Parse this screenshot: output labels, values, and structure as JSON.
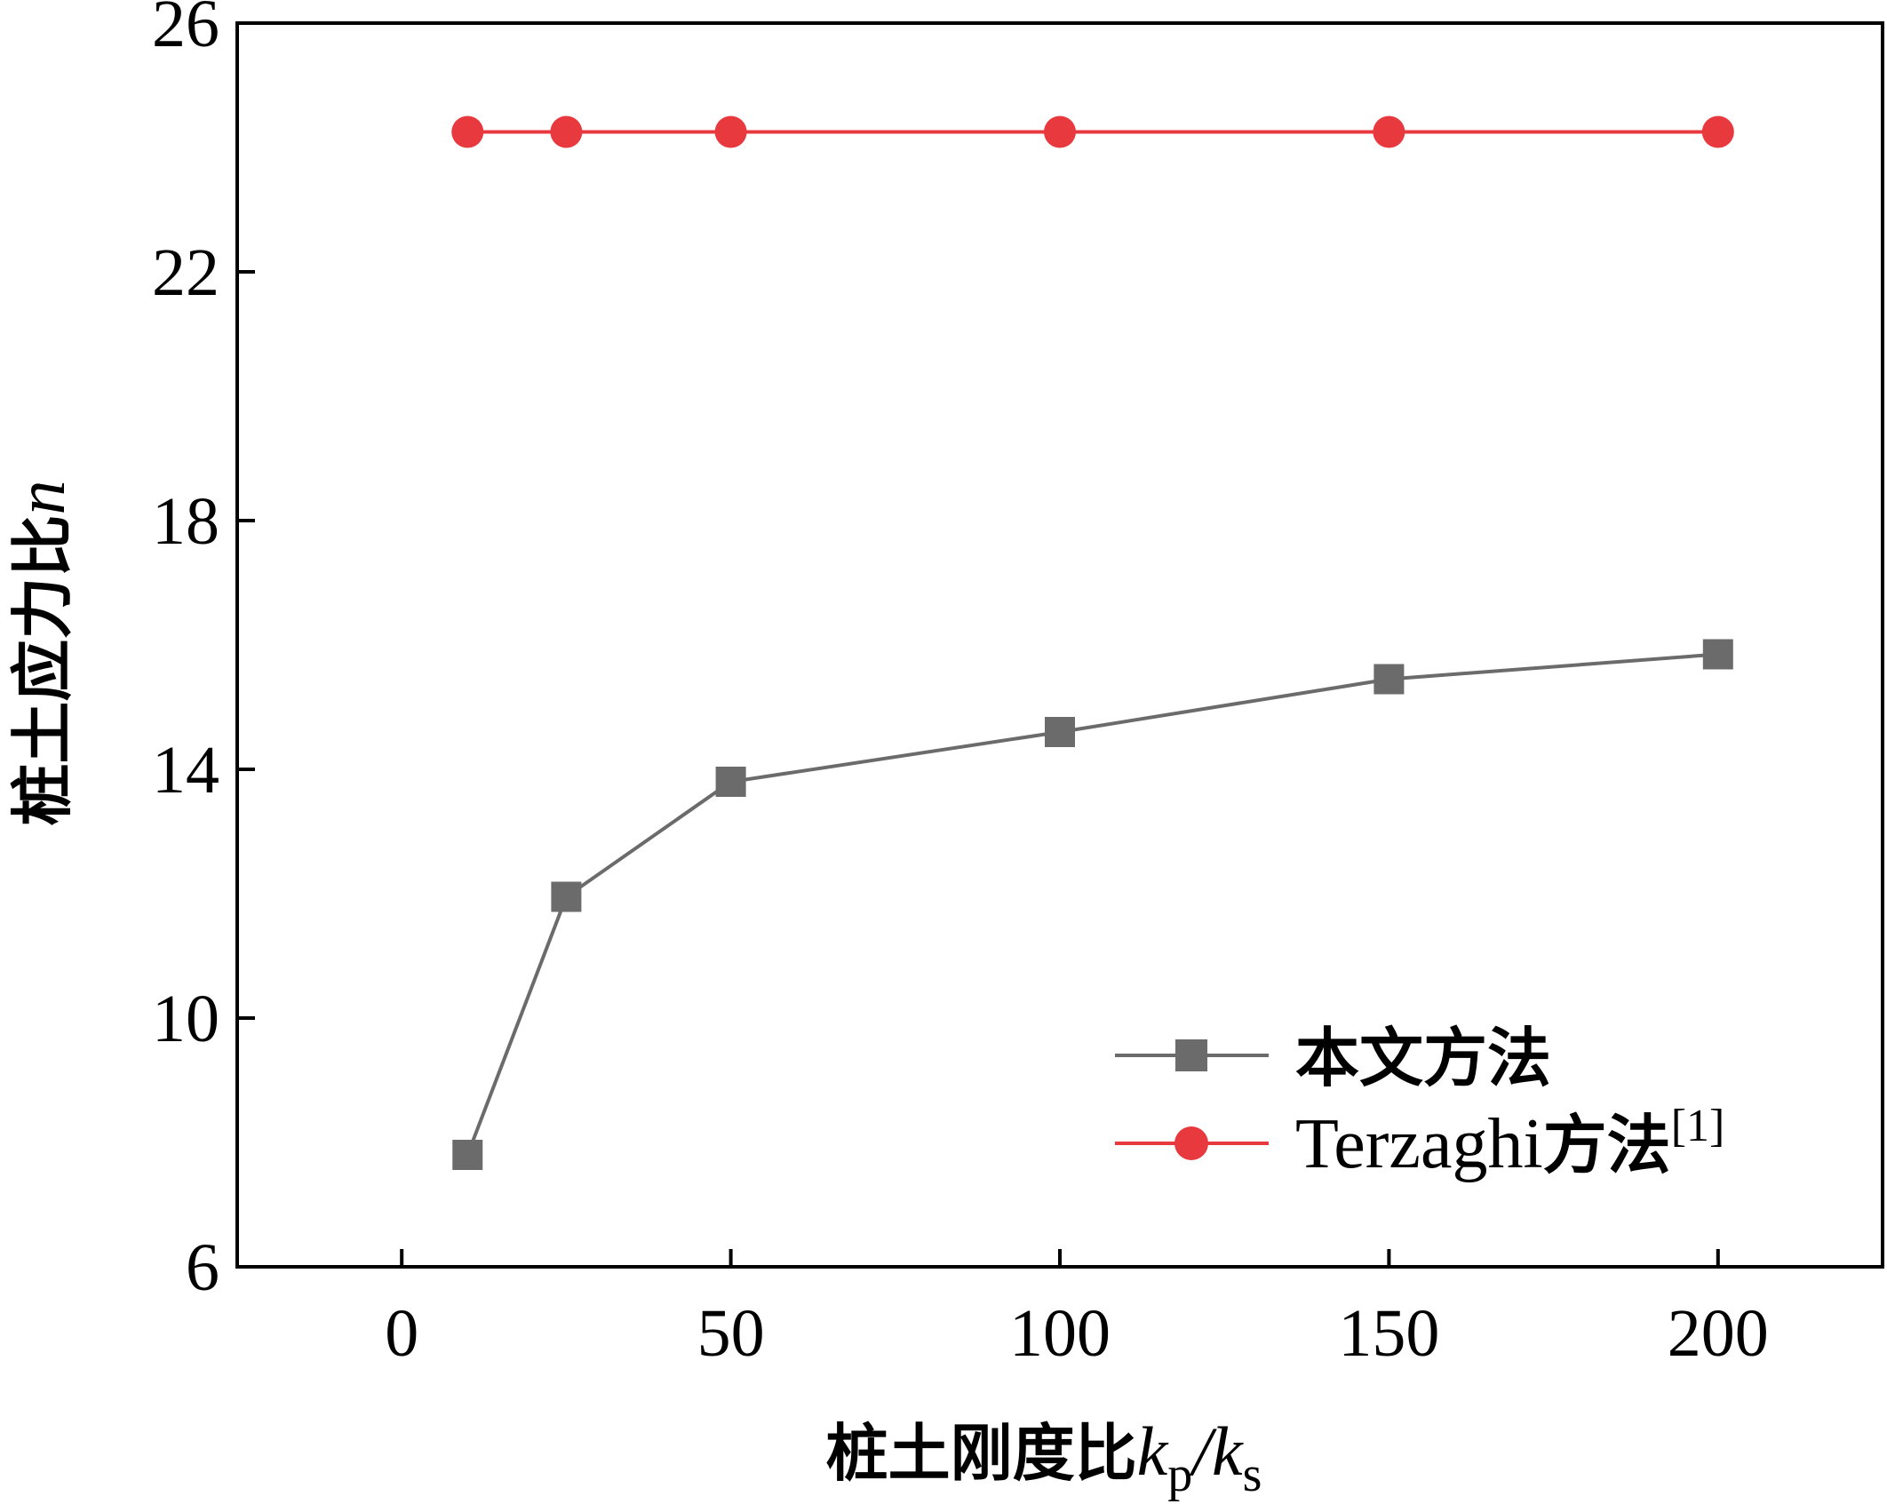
{
  "chart_data": {
    "type": "line",
    "xlabel": {
      "prefix": "桩土刚度比",
      "k1": "k",
      "sub1": "p",
      "slash": "/",
      "k2": "k",
      "sub2": "s"
    },
    "ylabel": {
      "prefix": "桩土应力比",
      "var": "n"
    },
    "xlim": [
      -25,
      225
    ],
    "ylim": [
      6,
      26
    ],
    "xticks": [
      0,
      50,
      100,
      150,
      200
    ],
    "yticks": [
      6,
      10,
      14,
      18,
      22,
      26
    ],
    "legend_position": "lower-right",
    "series": [
      {
        "name": "本文方法",
        "marker": "square",
        "color": "#6b6b6b",
        "x": [
          10,
          25,
          50,
          100,
          150,
          200
        ],
        "y": [
          7.8,
          11.95,
          13.8,
          14.6,
          15.45,
          15.85
        ]
      },
      {
        "name": "Terzaghi方法",
        "name_latin": "Terzaghi",
        "name_cjk": "方法",
        "name_sup": "[1]",
        "marker": "circle",
        "color": "#e8393f",
        "x": [
          10,
          25,
          50,
          100,
          150,
          200
        ],
        "y": [
          24.25,
          24.25,
          24.25,
          24.25,
          24.25,
          24.25
        ]
      }
    ]
  }
}
